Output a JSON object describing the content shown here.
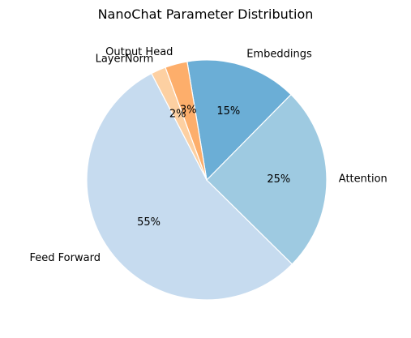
{
  "chart_data": {
    "type": "pie",
    "title": "NanoChat Parameter Distribution",
    "slices": [
      {
        "label": "Feed Forward",
        "value": 55,
        "pct_label": "55%",
        "color": "#c6dbef"
      },
      {
        "label": "Attention",
        "value": 25,
        "pct_label": "25%",
        "color": "#9ecae1"
      },
      {
        "label": "Embeddings",
        "value": 15,
        "pct_label": "15%",
        "color": "#6baed6"
      },
      {
        "label": "Output Head",
        "value": 3,
        "pct_label": "3%",
        "color": "#fdae6b"
      },
      {
        "label": "LayerNorm",
        "value": 2,
        "pct_label": "2%",
        "color": "#fdd0a2"
      }
    ],
    "legend": "none"
  }
}
